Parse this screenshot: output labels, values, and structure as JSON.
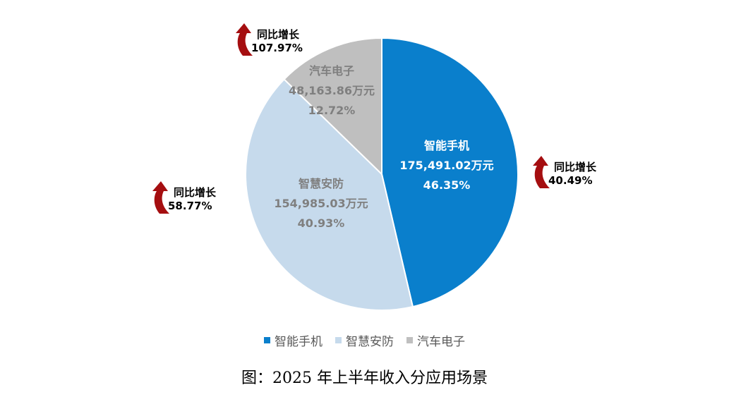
{
  "chart_data": {
    "type": "pie",
    "unit": "万元",
    "slices": [
      {
        "name": "智能手机",
        "value": 175491.02,
        "value_label": "175,491.02万元",
        "percent": 46.35,
        "percent_label": "46.35%",
        "color": "#0A7FCC",
        "text_color": "#FFFFFF",
        "growth_title": "同比增长",
        "growth_value": "40.49%"
      },
      {
        "name": "智慧安防",
        "value": 154985.03,
        "value_label": "154,985.03万元",
        "percent": 40.93,
        "percent_label": "40.93%",
        "color": "#C6DAEC",
        "text_color": "#7F7F7F",
        "growth_title": "同比增长",
        "growth_value": "58.77%"
      },
      {
        "name": "汽车电子",
        "value": 48163.86,
        "value_label": "48,163.86万元",
        "percent": 12.72,
        "percent_label": "12.72%",
        "color": "#BFBFBF",
        "text_color": "#7F7F7F",
        "growth_title": "同比增长",
        "growth_value": "107.97%"
      }
    ],
    "legend": {
      "position": "bottom",
      "entries": [
        "智能手机",
        "智慧安防",
        "汽车电子"
      ]
    },
    "arrow_color": "#A50E10"
  },
  "caption": "图：2025 年上半年收入分应用场景"
}
